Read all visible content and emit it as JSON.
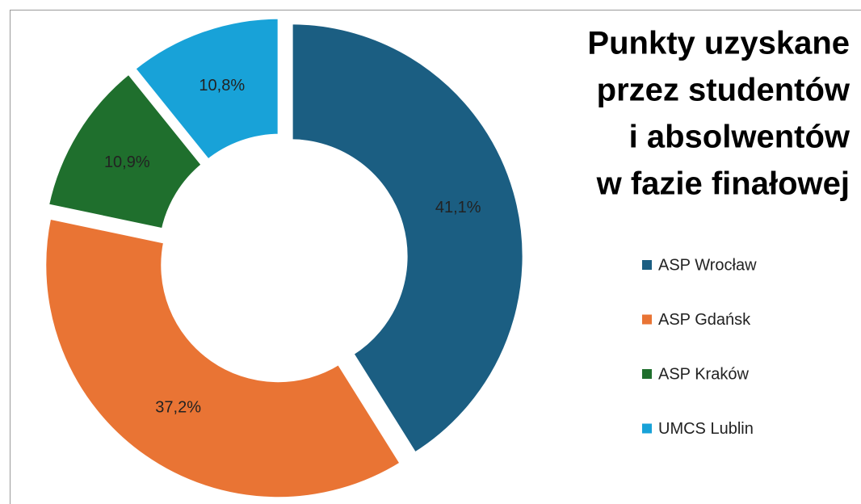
{
  "chart_data": {
    "type": "donut",
    "title": [
      "Punkty uzyskane",
      "przez studentów",
      "i absolwentów",
      "w fazie finałowej"
    ],
    "categories": [
      "ASP Wrocław",
      "ASP Gdańsk",
      "ASP Kraków",
      "UMCS Lublin"
    ],
    "values": [
      41.1,
      37.2,
      10.9,
      10.8
    ],
    "value_labels": [
      "41,1%",
      "37,2%",
      "10,9%",
      "10,8%"
    ],
    "colors": [
      "#1b5e82",
      "#e97434",
      "#1f6f2d",
      "#18a2d8"
    ],
    "legend": "right"
  }
}
